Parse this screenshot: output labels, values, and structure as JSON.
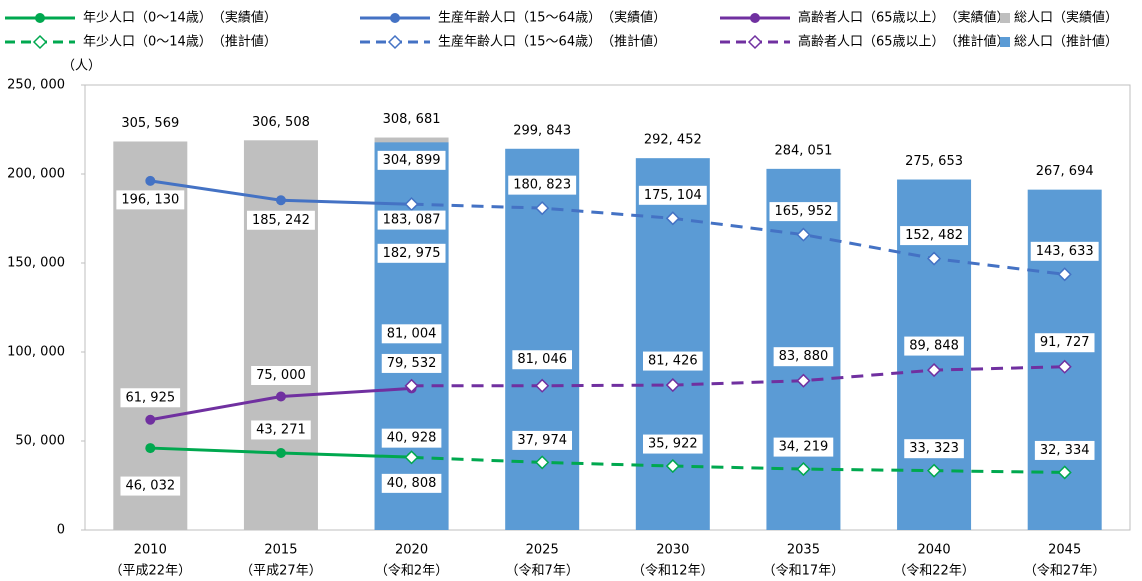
{
  "chart_data": {
    "type": "combo",
    "y_label": "（人）",
    "categories": [
      "2010",
      "2015",
      "2020",
      "2025",
      "2030",
      "2035",
      "2040",
      "2045"
    ],
    "category_sublabels": [
      "（平成22年）",
      "（平成27年）",
      "（令和2年）",
      "（令和7年）",
      "（令和12年）",
      "（令和17年）",
      "（令和22年）",
      "（令和27年）"
    ],
    "ylim": [
      0,
      250000
    ],
    "yticks": [
      {
        "value": 0,
        "label": "0"
      },
      {
        "value": 50000,
        "label": "50, 000"
      },
      {
        "value": 100000,
        "label": "100, 000"
      },
      {
        "value": 150000,
        "label": "150, 000"
      },
      {
        "value": 200000,
        "label": "200, 000"
      },
      {
        "value": 250000,
        "label": "250, 000"
      }
    ],
    "y2lim": [
      0,
      350000
    ],
    "grid": false,
    "series": [
      {
        "name": "年少人口（0～14歳）　（実績値）",
        "kind": "line",
        "dashed": false,
        "marker": "circle",
        "color": "#00a84f",
        "label_color": "#000000",
        "values": [
          46032,
          43271,
          40928,
          null,
          null,
          null,
          null,
          null
        ],
        "value_labels": [
          "46, 032",
          "43, 271",
          "40, 928",
          null,
          null,
          null,
          null,
          null
        ]
      },
      {
        "name": "生産年齢人口（15～64歳）　（実績値）",
        "kind": "line",
        "dashed": false,
        "marker": "circle",
        "color": "#4472c4",
        "label_color": "#000000",
        "values": [
          196130,
          185242,
          182975,
          null,
          null,
          null,
          null,
          null
        ],
        "value_labels": [
          "196, 130",
          "185, 242",
          "182, 975",
          null,
          null,
          null,
          null,
          null
        ]
      },
      {
        "name": "高齢者人口（65歳以上）　（実績値）",
        "kind": "line",
        "dashed": false,
        "marker": "circle",
        "color": "#7030a0",
        "label_color": "#000000",
        "values": [
          61925,
          75000,
          79532,
          null,
          null,
          null,
          null,
          null
        ],
        "value_labels": [
          "61, 925",
          "75, 000",
          "79, 532",
          null,
          null,
          null,
          null,
          null
        ]
      },
      {
        "name": "総人口（実績値）",
        "kind": "bar",
        "axis": "y2",
        "color": "#bfbfbf",
        "label_color": "#000000",
        "values": [
          305569,
          306508,
          308681,
          null,
          null,
          null,
          null,
          null
        ],
        "value_labels": [
          "305, 569",
          "306, 508",
          "308, 681",
          null,
          null,
          null,
          null,
          null
        ]
      },
      {
        "name": "年少人口（0～14歳）　（推計値）",
        "kind": "line",
        "dashed": true,
        "marker": "diamond",
        "color": "#00a84f",
        "label_color": "#00a84f",
        "values": [
          null,
          null,
          40808,
          37974,
          35922,
          34219,
          33323,
          32334
        ],
        "value_labels": [
          null,
          null,
          "40, 808",
          "37, 974",
          "35, 922",
          "34, 219",
          "33, 323",
          "32, 334"
        ]
      },
      {
        "name": "生産年齢人口（15～64歳）　（推計値）",
        "kind": "line",
        "dashed": true,
        "marker": "diamond",
        "color": "#4472c4",
        "label_color": "#4472c4",
        "values": [
          null,
          null,
          183087,
          180823,
          175104,
          165952,
          152482,
          143633
        ],
        "value_labels": [
          null,
          null,
          "183, 087",
          "180, 823",
          "175, 104",
          "165, 952",
          "152, 482",
          "143, 633"
        ]
      },
      {
        "name": "高齢者人口（65歳以上）　（推計値）",
        "kind": "line",
        "dashed": true,
        "marker": "diamond",
        "color": "#7030a0",
        "label_color": "#7030a0",
        "values": [
          null,
          null,
          81004,
          81046,
          81426,
          83880,
          89848,
          91727
        ],
        "value_labels": [
          null,
          null,
          "81, 004",
          "81, 046",
          "81, 426",
          "83, 880",
          "89, 848",
          "91, 727"
        ]
      },
      {
        "name": "総人口（推計値）",
        "kind": "bar",
        "axis": "y2",
        "color": "#5b9bd5",
        "label_color": "#5b8fc9",
        "values": [
          null,
          null,
          304899,
          299843,
          292452,
          284051,
          275653,
          267694
        ],
        "value_labels": [
          null,
          null,
          "304, 899",
          "299, 843",
          "292, 452",
          "284, 051",
          "275, 653",
          "267, 694"
        ]
      }
    ]
  }
}
